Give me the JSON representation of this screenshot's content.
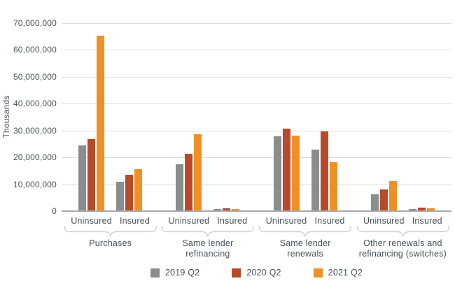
{
  "chart_data": {
    "type": "bar",
    "title": "",
    "xlabel": "",
    "ylabel": "Thousands",
    "ylim": [
      0,
      70000000
    ],
    "ytick_step": 10000000,
    "yticks": [
      0,
      10000000,
      20000000,
      30000000,
      40000000,
      50000000,
      60000000,
      70000000
    ],
    "ytick_labels": [
      "0",
      "10,000,000",
      "20,000,000",
      "30,000,000",
      "40,000,000",
      "50,000,000",
      "60,000,000",
      "70,000,000"
    ],
    "grid": true,
    "legend_position": "bottom",
    "series": [
      {
        "name": "2019 Q2",
        "color": "#8A8C8E"
      },
      {
        "name": "2020 Q2",
        "color": "#B84A2B"
      },
      {
        "name": "2021 Q2",
        "color": "#EE9025"
      }
    ],
    "groups": [
      {
        "label": "Purchases",
        "label_lines": [
          "Purchases"
        ],
        "subgroups": [
          {
            "label": "Uninsured",
            "values": [
              24500000,
              26700000,
              65200000
            ]
          },
          {
            "label": "Insured",
            "values": [
              11000000,
              13600000,
              15500000
            ]
          }
        ]
      },
      {
        "label": "Same lender refinancing",
        "label_lines": [
          "Same lender",
          "refinancing"
        ],
        "subgroups": [
          {
            "label": "Uninsured",
            "values": [
              17400000,
              21300000,
              28700000
            ]
          },
          {
            "label": "Insured",
            "values": [
              700000,
              1100000,
              900000
            ]
          }
        ]
      },
      {
        "label": "Same lender renewals",
        "label_lines": [
          "Same lender",
          "renewals"
        ],
        "subgroups": [
          {
            "label": "Uninsured",
            "values": [
              27900000,
              30800000,
              28000000
            ]
          },
          {
            "label": "Insured",
            "values": [
              23000000,
              29600000,
              18300000
            ]
          }
        ]
      },
      {
        "label": "Other renewals and refinancing (switches)",
        "label_lines": [
          "Other renewals and",
          "refinancing (switches)"
        ],
        "subgroups": [
          {
            "label": "Uninsured",
            "values": [
              6200000,
              8200000,
              11100000
            ]
          },
          {
            "label": "Insured",
            "values": [
              700000,
              1400000,
              1100000
            ]
          }
        ]
      }
    ]
  },
  "styles": {
    "gridline_color": "#DCDCDC",
    "axis_line_color": "#A7A9AC",
    "brace_color": "#C8CBCE",
    "text_color": "#47515A"
  }
}
